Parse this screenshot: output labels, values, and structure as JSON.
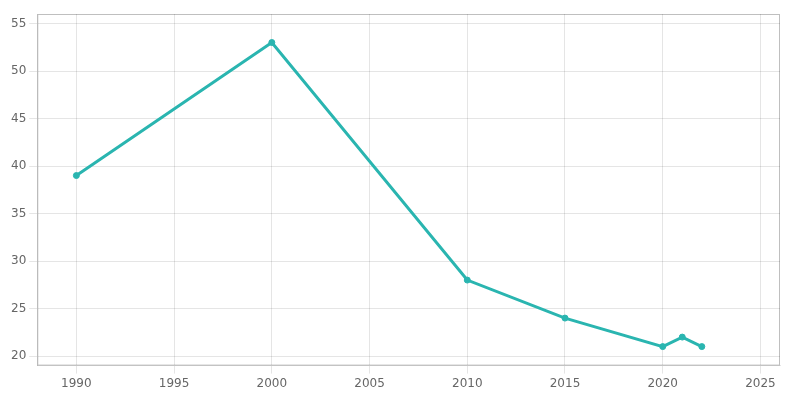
{
  "chart_data": {
    "type": "line",
    "x": [
      1990,
      2000,
      2010,
      2015,
      2020,
      2021,
      2022
    ],
    "values": [
      39,
      53,
      28,
      24,
      21,
      22,
      21
    ],
    "color": "#2ab5b0",
    "marker": "circle",
    "xlim": [
      1988,
      2026
    ],
    "xticks": [
      1990,
      1995,
      2000,
      2005,
      2010,
      2015,
      2020,
      2025
    ],
    "ylim": [
      19,
      56
    ],
    "yticks": [
      20,
      25,
      30,
      35,
      40,
      45,
      50,
      55
    ],
    "grid": true
  }
}
